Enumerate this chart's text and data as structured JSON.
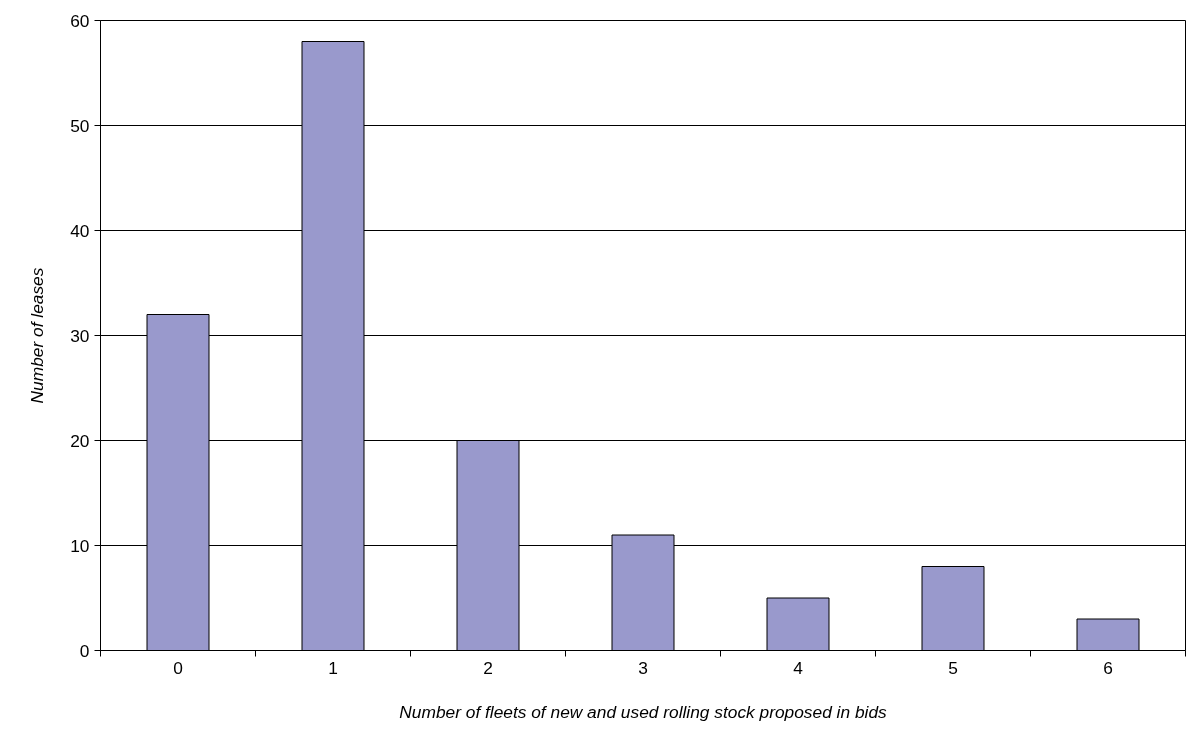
{
  "chart_data": {
    "type": "bar",
    "xlabel": "Number of fleets of new and used rolling stock proposed in bids",
    "ylabel": "Number of leases",
    "categories": [
      "0",
      "1",
      "2",
      "3",
      "4",
      "5",
      "6"
    ],
    "values": [
      32,
      58,
      20,
      11,
      5,
      8,
      3
    ],
    "color": "#9999cc",
    "ylim": [
      0,
      60
    ],
    "yticks": [
      0,
      10,
      20,
      30,
      40,
      50,
      60
    ],
    "grid": "y"
  }
}
